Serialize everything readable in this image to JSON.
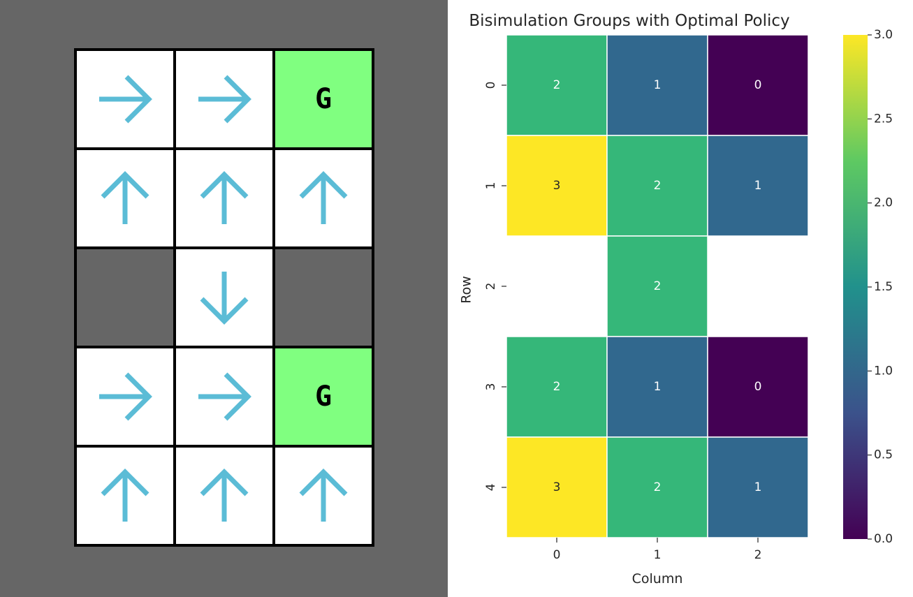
{
  "gridworld": {
    "rows": 5,
    "cols": 3,
    "cells": [
      [
        "right",
        "right",
        "goal"
      ],
      [
        "up",
        "up",
        "up"
      ],
      [
        "wall",
        "down",
        "wall"
      ],
      [
        "right",
        "right",
        "goal"
      ],
      [
        "up",
        "up",
        "up"
      ]
    ],
    "goal_label": "G",
    "colors": {
      "background": "#666666",
      "floor": "#ffffff",
      "wall": "#666666",
      "goal": "#80ff80",
      "arrow": "#5bbcd6",
      "border": "#000000"
    }
  },
  "chart_data": {
    "type": "heatmap",
    "title": "Bisimulation Groups with Optimal Policy",
    "xlabel": "Column",
    "ylabel": "Row",
    "x_ticks": [
      "0",
      "1",
      "2"
    ],
    "y_ticks": [
      "0",
      "1",
      "2",
      "3",
      "4"
    ],
    "values": [
      [
        2,
        1,
        0
      ],
      [
        3,
        2,
        1
      ],
      [
        null,
        2,
        null
      ],
      [
        2,
        1,
        0
      ],
      [
        3,
        2,
        1
      ]
    ],
    "cell_labels": [
      [
        "2",
        "1",
        "0"
      ],
      [
        "3",
        "2",
        "1"
      ],
      [
        null,
        "2",
        null
      ],
      [
        "2",
        "1",
        "0"
      ],
      [
        "3",
        "2",
        "1"
      ]
    ],
    "colormap": "viridis",
    "vmin": 0,
    "vmax": 3,
    "colorbar_ticks": [
      "0.0",
      "0.5",
      "1.0",
      "1.5",
      "2.0",
      "2.5",
      "3.0"
    ],
    "colors": {
      "0": "#440154",
      "1": "#31688e",
      "2": "#35b779",
      "3": "#fde725"
    }
  }
}
